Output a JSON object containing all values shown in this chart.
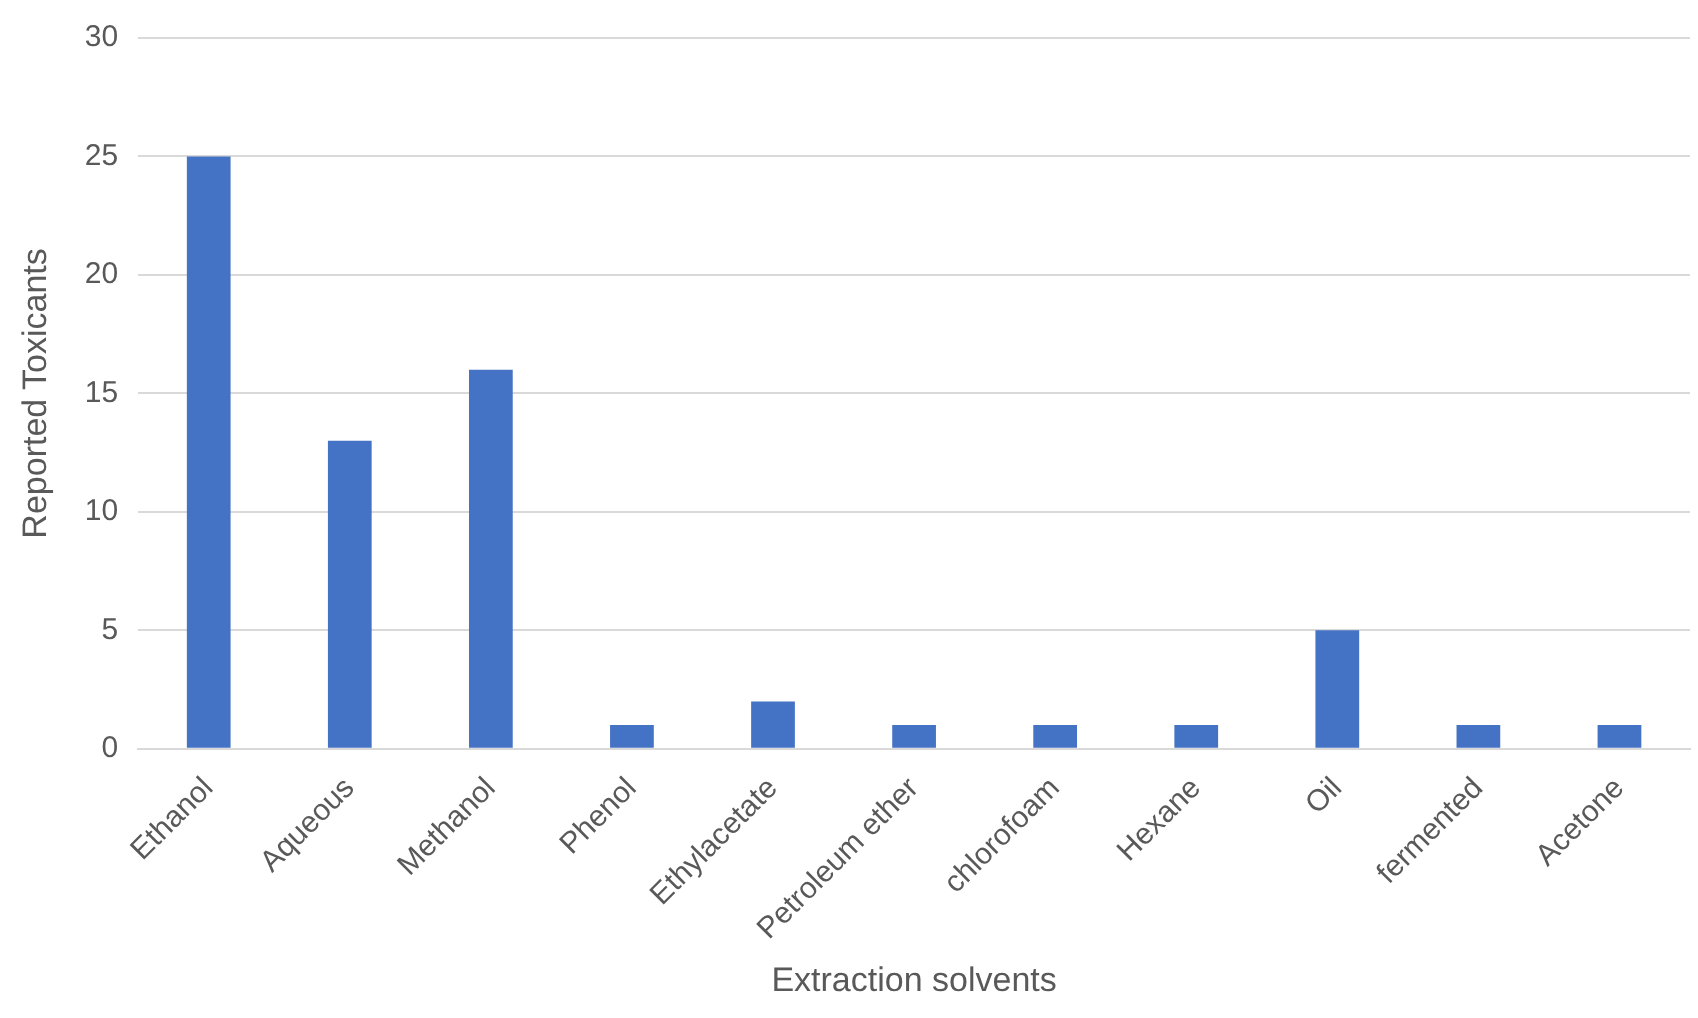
{
  "chart_data": {
    "type": "bar",
    "xlabel": "Extraction solvents",
    "ylabel": "Reported Toxicants",
    "categories": [
      "Ethanol",
      "Aqueous",
      "Methanol",
      "Phenol",
      "Ethylacetate",
      "Petroleum ether",
      "chlorofoam",
      "Hexane",
      "Oil",
      "fermented",
      "Acetone"
    ],
    "values": [
      25,
      13,
      16,
      1,
      2,
      1,
      1,
      1,
      5,
      1,
      1
    ],
    "color": "#4472c4",
    "ylim": [
      0,
      30
    ],
    "yticks": [
      0,
      5,
      10,
      15,
      20,
      25,
      30
    ],
    "grid": "y",
    "legend": false
  }
}
